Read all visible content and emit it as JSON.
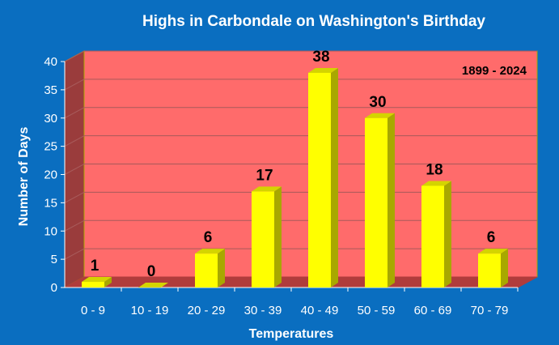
{
  "colors": {
    "background": "#0a6ec0",
    "plot_back": "#ff6b6b",
    "plot_side": "#9a3c3c",
    "plot_floor": "#b03c3c",
    "grid": "#a85a5a",
    "bar_front": "#ffff00",
    "bar_side": "#a8a800",
    "bar_top": "#d4d400",
    "axis_line": "#ffffff",
    "text": "#ffffff"
  },
  "chart_data": {
    "type": "bar",
    "title": "Highs in Carbondale on Washington's Birthday",
    "annotation": "1899 - 2024",
    "xlabel": "Temperatures",
    "ylabel": "Number of Days",
    "categories": [
      "0 - 9",
      "10 - 19",
      "20 - 29",
      "30 - 39",
      "40 - 49",
      "50 - 59",
      "60 - 69",
      "70 - 79"
    ],
    "values": [
      1,
      0,
      6,
      17,
      38,
      30,
      18,
      6
    ],
    "data_labels": [
      "1",
      "0",
      "6",
      "17",
      "38",
      "30",
      "18",
      "6"
    ],
    "ylim": [
      0,
      40
    ],
    "yticks": [
      0,
      5,
      10,
      15,
      20,
      25,
      30,
      35,
      40
    ],
    "ytick_labels": [
      "0",
      "5",
      "10",
      "15",
      "20",
      "25",
      "30",
      "35",
      "40"
    ],
    "grid": true,
    "legend": "none",
    "style": "3d-bar"
  }
}
